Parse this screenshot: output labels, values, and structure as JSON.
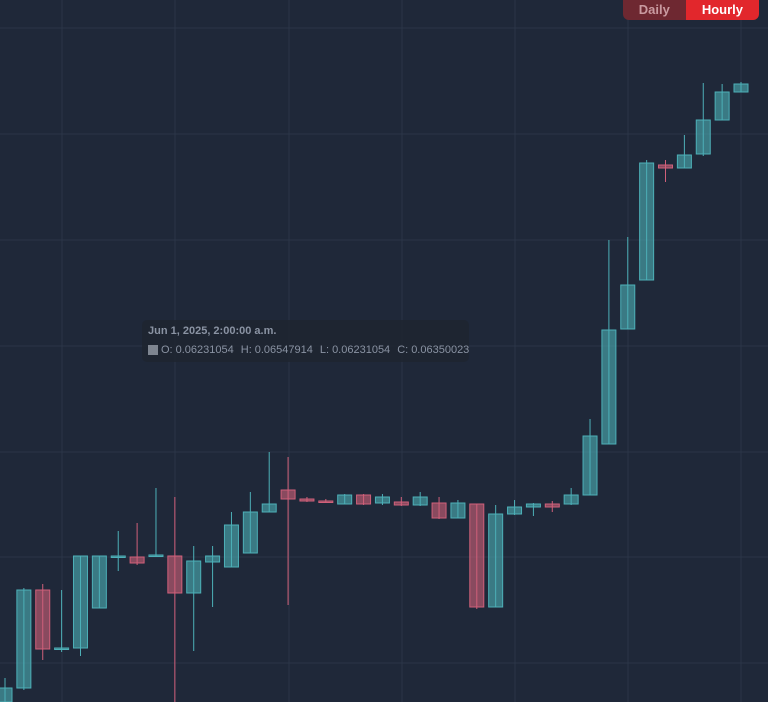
{
  "buttons": [
    "Daily",
    "Hourly"
  ],
  "tooltip": {
    "date": "Jun 1, 2025, 2:00:00 a.m.",
    "fields": [
      {
        "label": "O:",
        "value": 0.06231054
      },
      {
        "label": "H:",
        "value": 0.06547914
      },
      {
        "label": "L:",
        "value": 0.06231054
      },
      {
        "label": "C:",
        "value": 0.06350023
      }
    ]
  },
  "chart_data": {
    "type": "candlestick",
    "up_color": "#4db0b8",
    "down_color": "#d0607a",
    "ylim": [
      0.0557,
      0.0908
    ],
    "open": [
      0.0557,
      0.0564,
      0.0613,
      0.05835,
      0.0584,
      0.0604,
      0.06295,
      0.06295,
      0.063,
      0.063,
      0.06115,
      0.0627,
      0.06245,
      0.06315,
      0.0652,
      0.0663,
      0.06585,
      0.06575,
      0.0656,
      0.06605,
      0.06565,
      0.0657,
      0.06555,
      0.06565,
      0.0649,
      0.0656,
      0.06045,
      0.0651,
      0.06545,
      0.0656,
      0.0656,
      0.06605,
      0.0686,
      0.07435,
      0.0768,
      0.08255,
      0.0824,
      0.0831,
      0.0848,
      0.0862
    ],
    "high": [
      0.0569,
      0.0614,
      0.0616,
      0.0613,
      0.063,
      0.063,
      0.06425,
      0.06465,
      0.0664,
      0.06595,
      0.0635,
      0.0635,
      0.0652,
      0.0662,
      0.0682,
      0.06795,
      0.06595,
      0.06585,
      0.0661,
      0.0661,
      0.0661,
      0.06595,
      0.0662,
      0.06595,
      0.0658,
      0.0656,
      0.06555,
      0.0658,
      0.06565,
      0.06575,
      0.0664,
      0.06985,
      0.0788,
      0.07895,
      0.0828,
      0.0828,
      0.08405,
      0.08665,
      0.0866,
      0.0867
    ],
    "low": [
      0.0557,
      0.0563,
      0.0578,
      0.0582,
      0.058,
      0.0604,
      0.06225,
      0.06255,
      0.06295,
      0.0557,
      0.05825,
      0.06045,
      0.06245,
      0.06315,
      0.0652,
      0.06055,
      0.0657,
      0.06565,
      0.0656,
      0.06555,
      0.06555,
      0.0655,
      0.0655,
      0.06485,
      0.0649,
      0.06035,
      0.06045,
      0.06505,
      0.065,
      0.0652,
      0.06555,
      0.06605,
      0.0686,
      0.07435,
      0.0768,
      0.0817,
      0.0824,
      0.083,
      0.0848,
      0.0862
    ],
    "close": [
      0.0564,
      0.0613,
      0.05835,
      0.0584,
      0.063,
      0.063,
      0.063,
      0.06265,
      0.06305,
      0.06115,
      0.06275,
      0.063,
      0.06455,
      0.0652,
      0.0656,
      0.06585,
      0.06575,
      0.0657,
      0.06605,
      0.0656,
      0.06595,
      0.06555,
      0.06595,
      0.0649,
      0.06565,
      0.06045,
      0.0651,
      0.06545,
      0.0656,
      0.06545,
      0.06605,
      0.069,
      0.0743,
      0.07655,
      0.08265,
      0.0824,
      0.08305,
      0.0848,
      0.0862,
      0.0866
    ]
  }
}
